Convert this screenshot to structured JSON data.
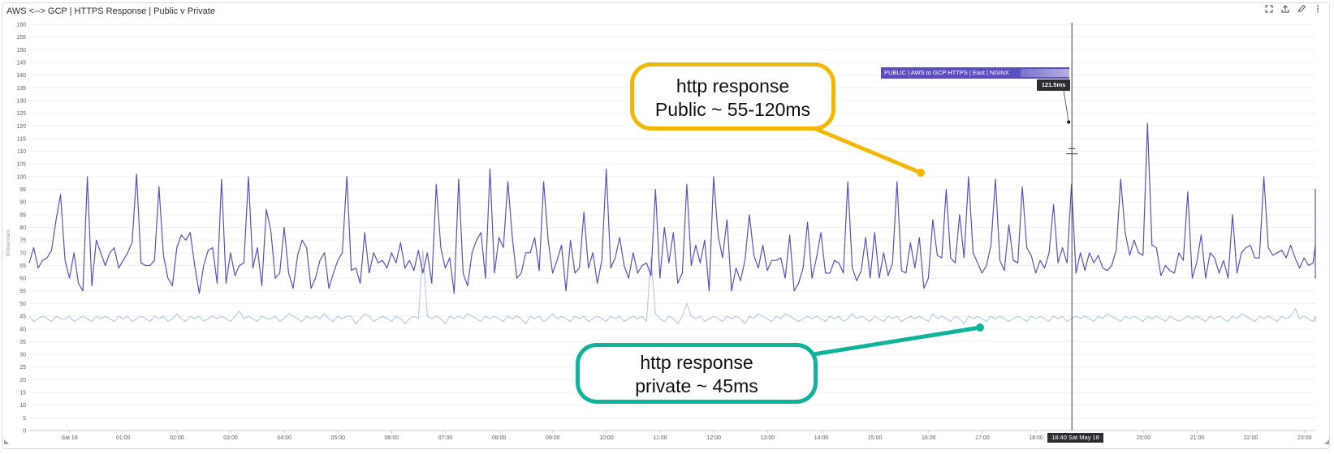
{
  "widget": {
    "title": "AWS <--> GCP | HTTPS Response | Public v Private",
    "icons": [
      "expand-icon",
      "export-icon",
      "edit-icon",
      "more-icon"
    ]
  },
  "chart_data": {
    "type": "line",
    "ylabel": "Milliseconds",
    "ylim": [
      0,
      160
    ],
    "yticks": [
      0,
      5,
      10,
      15,
      20,
      25,
      30,
      35,
      40,
      45,
      50,
      55,
      60,
      65,
      70,
      75,
      80,
      85,
      90,
      95,
      100,
      105,
      110,
      115,
      120,
      125,
      130,
      135,
      140,
      145,
      150,
      155,
      160
    ],
    "xtick_labels": [
      "Sat 18",
      "01:00",
      "02:00",
      "03:00",
      "04:00",
      "05:00",
      "06:00",
      "07:00",
      "08:00",
      "09:00",
      "10:00",
      "11:00",
      "12:00",
      "13:00",
      "14:00",
      "15:00",
      "16:00",
      "17:00",
      "18:00",
      "20:00",
      "21:00",
      "22:00",
      "23:00"
    ],
    "xtick_hours": [
      0,
      1,
      2,
      3,
      4,
      5,
      6,
      7,
      8,
      9,
      10,
      11,
      12,
      13,
      14,
      15,
      16,
      17,
      18,
      20,
      21,
      22,
      23
    ],
    "xlim_hours": [
      -0.75,
      23.2
    ],
    "grid": true,
    "series": [
      {
        "name": "PUBLIC | AWS to GCP HTTPS | East | NGINX",
        "color": "#5b4fbf",
        "x_start": -0.75,
        "x_step": 0.0833,
        "values": [
          66,
          72,
          64,
          67,
          68,
          71,
          83,
          93,
          67,
          60,
          70,
          58,
          55,
          100,
          57,
          75,
          70,
          65,
          70,
          72,
          64,
          67,
          70,
          74,
          101,
          66,
          65,
          65,
          67,
          96,
          69,
          60,
          57,
          72,
          77,
          75,
          78,
          65,
          54,
          65,
          71,
          72,
          58,
          99,
          58,
          70,
          61,
          65,
          66,
          100,
          64,
          72,
          57,
          87,
          79,
          60,
          62,
          80,
          62,
          56,
          69,
          75,
          72,
          56,
          60,
          67,
          70,
          56,
          62,
          67,
          70,
          100,
          63,
          64,
          58,
          78,
          62,
          70,
          66,
          67,
          64,
          70,
          66,
          74,
          64,
          67,
          63,
          71,
          62,
          70,
          58,
          97,
          72,
          64,
          68,
          54,
          99,
          62,
          57,
          70,
          75,
          78,
          60,
          103,
          62,
          76,
          72,
          98,
          76,
          60,
          62,
          70,
          70,
          76,
          63,
          98,
          75,
          62,
          67,
          73,
          55,
          75,
          62,
          64,
          86,
          64,
          70,
          58,
          67,
          103,
          64,
          68,
          76,
          65,
          60,
          70,
          62,
          65,
          66,
          61,
          95,
          60,
          80,
          66,
          78,
          58,
          62,
          97,
          65,
          73,
          66,
          75,
          55,
          100,
          77,
          68,
          83,
          55,
          64,
          59,
          67,
          85,
          69,
          64,
          73,
          63,
          67,
          67,
          68,
          60,
          77,
          55,
          58,
          64,
          82,
          60,
          68,
          78,
          62,
          62,
          67,
          66,
          62,
          98,
          64,
          59,
          63,
          76,
          60,
          78,
          60,
          70,
          61,
          66,
          98,
          63,
          62,
          74,
          64,
          76,
          56,
          60,
          83,
          69,
          68,
          95,
          68,
          66,
          85,
          68,
          100,
          70,
          66,
          62,
          65,
          73,
          99,
          67,
          63,
          81,
          67,
          66,
          96,
          72,
          69,
          62,
          67,
          64,
          70,
          89,
          66,
          72,
          66,
          97,
          62,
          70,
          63,
          70,
          66,
          69,
          64,
          63,
          65,
          71,
          99,
          78,
          69,
          75,
          70,
          69,
          121,
          73,
          72,
          61,
          65,
          63,
          62,
          70,
          67,
          94,
          60,
          66,
          77,
          60,
          70,
          68,
          62,
          67,
          60,
          85,
          62,
          70,
          72,
          73,
          68,
          68,
          100,
          72,
          69,
          70,
          71,
          68,
          73,
          68,
          64,
          68,
          65,
          66,
          73,
          66,
          75,
          67,
          63,
          69,
          95,
          60,
          67,
          66,
          70,
          62,
          66,
          60,
          70,
          72,
          67,
          63,
          73,
          74,
          76,
          61,
          65,
          64,
          60,
          70,
          91,
          72,
          64
        ]
      },
      {
        "name": "PRIVATE",
        "color": "#a9c4e2",
        "x_start": -0.75,
        "x_step": 0.0833,
        "values": [
          45,
          43,
          44,
          45,
          44,
          43,
          45,
          44,
          44,
          45,
          43,
          44,
          45,
          44,
          43,
          45,
          44,
          45,
          44,
          43,
          45,
          44,
          45,
          43,
          44,
          45,
          44,
          43,
          45,
          44,
          45,
          43,
          44,
          46,
          44,
          43,
          45,
          44,
          45,
          43,
          44,
          45,
          44,
          45,
          44,
          43,
          45,
          47,
          44,
          45,
          44,
          43,
          45,
          44,
          44,
          45,
          43,
          44,
          46,
          45,
          44,
          43,
          45,
          44,
          45,
          44,
          46,
          44,
          43,
          45,
          44,
          45,
          45,
          42,
          44,
          46,
          45,
          43,
          44,
          45,
          44,
          43,
          45,
          44,
          42,
          44,
          45,
          44,
          71,
          45,
          44,
          45,
          44,
          42,
          45,
          44,
          45,
          44,
          46,
          45,
          44,
          43,
          45,
          44,
          45,
          44,
          43,
          45,
          44,
          45,
          44,
          42,
          45,
          44,
          45,
          43,
          44,
          46,
          44,
          45,
          44,
          43,
          45,
          44,
          45,
          43,
          44,
          45,
          44,
          43,
          45,
          44,
          45,
          43,
          44,
          45,
          44,
          45,
          43,
          68,
          46,
          44,
          43,
          45,
          44,
          42,
          45,
          50,
          45,
          44,
          45,
          43,
          44,
          45,
          44,
          43,
          45,
          44,
          45,
          44,
          42,
          45,
          44,
          46,
          45,
          44,
          43,
          45,
          44,
          46,
          45,
          44,
          43,
          44,
          45,
          44,
          45,
          44,
          43,
          45,
          44,
          45,
          43,
          44,
          46,
          44,
          45,
          44,
          43,
          45,
          44,
          43,
          45,
          44,
          45,
          43,
          44,
          45,
          44,
          45,
          44,
          43,
          46,
          44,
          45,
          44,
          43,
          45,
          44,
          42,
          45,
          44,
          45,
          44,
          43,
          45,
          44,
          45,
          44,
          43,
          44,
          45,
          44,
          43,
          45,
          44,
          45,
          44,
          43,
          45,
          44,
          45,
          43,
          44,
          45,
          44,
          45,
          44,
          43,
          45,
          44,
          46,
          45,
          44,
          43,
          45,
          44,
          45,
          44,
          43,
          45,
          44,
          45,
          44,
          43,
          45,
          44,
          43,
          44,
          45,
          44,
          45,
          44,
          43,
          45,
          44,
          45,
          44,
          43,
          45,
          44,
          46,
          45,
          44,
          43,
          45,
          44,
          45,
          44,
          43,
          45,
          44,
          45,
          48,
          44,
          45,
          44,
          43,
          45,
          44,
          45,
          44,
          43,
          45,
          44,
          45,
          44,
          43,
          45,
          44,
          45,
          43,
          44
        ]
      }
    ],
    "cursor": {
      "time_label": "18:40 Sat May 18",
      "series_label": "PUBLIC | AWS to GCP HTTPS | East | NGINX",
      "value_label": "121.5ms",
      "hour": 18.667,
      "value": 121.5
    }
  },
  "annotations": {
    "public": {
      "line1": "http response",
      "line2": "Public ~ 55-120ms",
      "color": "#f2b705"
    },
    "private": {
      "line1": "http response",
      "line2": "private ~ 45ms",
      "color": "#0fb39a"
    }
  }
}
